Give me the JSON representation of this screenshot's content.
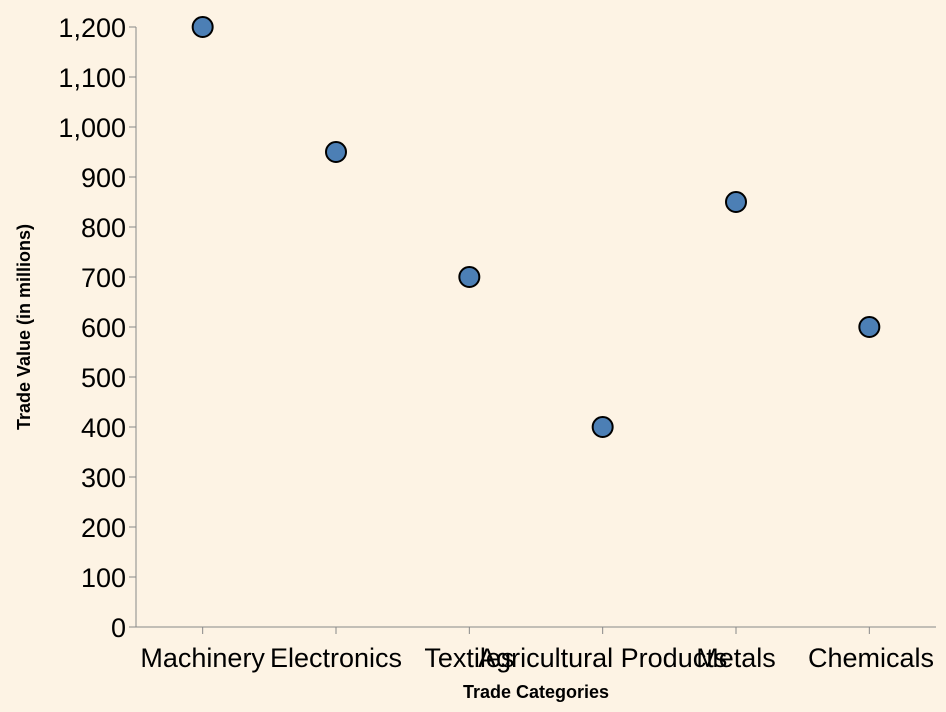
{
  "chart_data": {
    "type": "scatter",
    "categories": [
      "Machinery",
      "Electronics",
      "Textiles",
      "Agricultural Products",
      "Metals",
      "Chemicals"
    ],
    "values": [
      1200,
      950,
      700,
      400,
      850,
      600
    ],
    "xlabel": "Trade Categories",
    "ylabel": "Trade Value (in millions)",
    "ylim": [
      0,
      1200
    ],
    "yticks": [
      0,
      100,
      200,
      300,
      400,
      500,
      600,
      700,
      800,
      900,
      1000,
      1100,
      1200
    ],
    "ytick_labels": [
      "0",
      "100",
      "200",
      "300",
      "400",
      "500",
      "600",
      "700",
      "800",
      "900",
      "1,000",
      "1,100",
      "1,200"
    ],
    "grid": false,
    "point_color": "#4c7fb5",
    "point_stroke": "#000000",
    "background": "#fdf3e4"
  }
}
